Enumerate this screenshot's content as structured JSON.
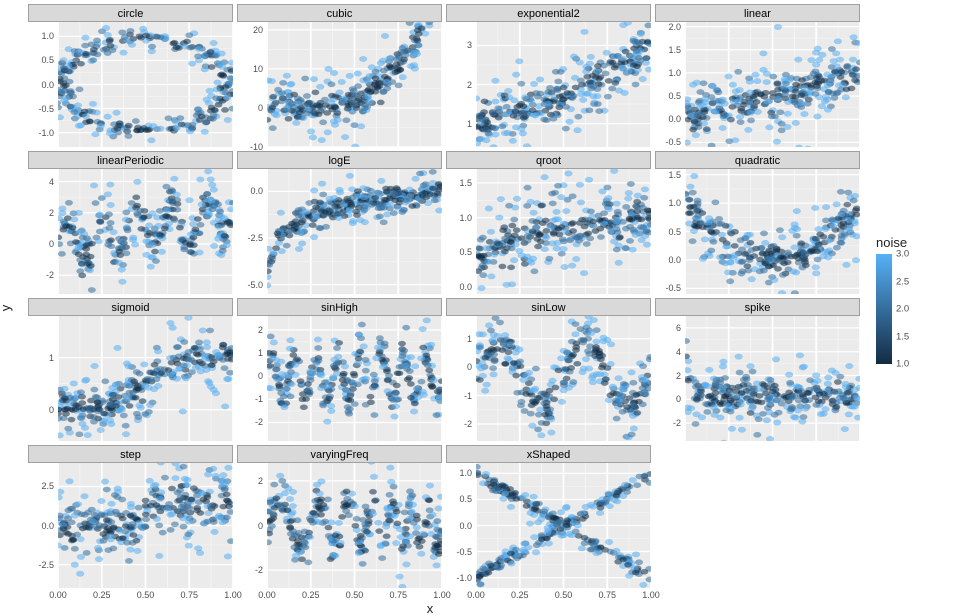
{
  "global": {
    "xlabel": "x",
    "ylabel": "y",
    "xlim": [
      0,
      1
    ],
    "xticks": [
      0.0,
      0.25,
      0.5,
      0.75,
      1.0
    ],
    "xtick_labels": [
      "0.00",
      "0.25",
      "0.50",
      "0.75",
      "1.00"
    ],
    "panel_bg": "#ebebeb",
    "grid_major": "#ffffff",
    "grid_minor": "#f5f5f5",
    "strip_bg": "#d9d9d9",
    "point_radius": 2.2,
    "point_alpha": 0.55,
    "point_stroke": "#5090b8",
    "n_points_per_panel": 300,
    "noise_levels": [
      1.0,
      2.0,
      3.0
    ]
  },
  "legend": {
    "title": "noise",
    "low_value": 1.0,
    "high_value": 3.0,
    "low_color": "#132b43",
    "high_color": "#56b1f7",
    "ticks": [
      1.0,
      1.5,
      2.0,
      2.5,
      3.0
    ]
  },
  "panels": [
    {
      "id": "circle",
      "title": "circle",
      "fn": "circle",
      "ylim": [
        -1.3,
        1.3
      ],
      "yticks": [
        -1.0,
        -0.5,
        0.0,
        0.5,
        1.0
      ],
      "ytick_labels": [
        "-1.0",
        "-0.5",
        "0.0",
        "0.5",
        "1.0"
      ],
      "noise_scale": 0.06
    },
    {
      "id": "cubic",
      "title": "cubic",
      "fn": "cubic",
      "ylim": [
        -10,
        22
      ],
      "yticks": [
        -10,
        0,
        10,
        20
      ],
      "ytick_labels": [
        "-10",
        "0",
        "10",
        "20"
      ],
      "noise_scale": 1.5
    },
    {
      "id": "exponential2",
      "title": "exponential2",
      "fn": "exponential2",
      "ylim": [
        0.4,
        3.6
      ],
      "yticks": [
        1,
        2,
        3
      ],
      "ytick_labels": [
        "1",
        "2",
        "3"
      ],
      "noise_scale": 0.18
    },
    {
      "id": "linear",
      "title": "linear",
      "fn": "linear",
      "ylim": [
        -0.6,
        2.1
      ],
      "yticks": [
        -0.5,
        0.0,
        0.5,
        1.0,
        1.5,
        2.0
      ],
      "ytick_labels": [
        "-0.5",
        "0.0",
        "0.5",
        "1.0",
        "1.5",
        "2.0"
      ],
      "noise_scale": 0.15
    },
    {
      "id": "linearPeriodic",
      "title": "linearPeriodic",
      "fn": "linearPeriodic",
      "ylim": [
        -3.2,
        4.8
      ],
      "yticks": [
        -2,
        0,
        2,
        4
      ],
      "ytick_labels": [
        "-2",
        "0",
        "2",
        "4"
      ],
      "noise_scale": 0.45
    },
    {
      "id": "logE",
      "title": "logE",
      "fn": "logE",
      "ylim": [
        -5.5,
        1.2
      ],
      "yticks": [
        -5.0,
        -2.5,
        0.0
      ],
      "ytick_labels": [
        "-5.0",
        "-2.5",
        "0.0"
      ],
      "noise_scale": 0.25
    },
    {
      "id": "qroot",
      "title": "qroot",
      "fn": "qroot",
      "ylim": [
        -0.1,
        1.7
      ],
      "yticks": [
        0.0,
        0.5,
        1.0,
        1.5
      ],
      "ytick_labels": [
        "0.0",
        "0.5",
        "1.0",
        "1.5"
      ],
      "noise_scale": 0.13
    },
    {
      "id": "quadratic",
      "title": "quadratic",
      "fn": "quadratic",
      "ylim": [
        -0.6,
        1.6
      ],
      "yticks": [
        -0.5,
        0.0,
        0.5,
        1.0,
        1.5
      ],
      "ytick_labels": [
        "-0.5",
        "0.0",
        "0.5",
        "1.0",
        "1.5"
      ],
      "noise_scale": 0.13
    },
    {
      "id": "sigmoid",
      "title": "sigmoid",
      "fn": "sigmoid",
      "ylim": [
        -0.6,
        1.8
      ],
      "yticks": [
        0,
        1
      ],
      "ytick_labels": [
        "0",
        "1"
      ],
      "noise_scale": 0.13
    },
    {
      "id": "sinHigh",
      "title": "sinHigh",
      "fn": "sinHigh",
      "ylim": [
        -2.8,
        2.6
      ],
      "yticks": [
        -2,
        -1,
        0,
        1,
        2
      ],
      "ytick_labels": [
        "-2",
        "-1",
        "0",
        "1",
        "2"
      ],
      "noise_scale": 0.25
    },
    {
      "id": "sinLow",
      "title": "sinLow",
      "fn": "sinLow",
      "ylim": [
        -2.6,
        1.8
      ],
      "yticks": [
        -2,
        -1,
        0,
        1
      ],
      "ytick_labels": [
        "-2",
        "-1",
        "0",
        "1"
      ],
      "noise_scale": 0.25
    },
    {
      "id": "spike",
      "title": "spike",
      "fn": "spike",
      "ylim": [
        -3.5,
        7
      ],
      "yticks": [
        -2,
        0,
        2,
        4,
        6
      ],
      "ytick_labels": [
        "-2",
        "0",
        "2",
        "4",
        "6"
      ],
      "noise_scale": 0.5
    },
    {
      "id": "step",
      "title": "step",
      "fn": "step",
      "ylim": [
        -4,
        4
      ],
      "yticks": [
        -2.5,
        0.0,
        2.5
      ],
      "ytick_labels": [
        "-2.5",
        "0.0",
        "2.5"
      ],
      "noise_scale": 0.5
    },
    {
      "id": "varyingFreq",
      "title": "varyingFreq",
      "fn": "varyingFreq",
      "ylim": [
        -2.8,
        2.8
      ],
      "yticks": [
        -2,
        0,
        2
      ],
      "ytick_labels": [
        "-2",
        "0",
        "2"
      ],
      "noise_scale": 0.3
    },
    {
      "id": "xShaped",
      "title": "xShaped",
      "fn": "xShaped",
      "ylim": [
        -1.2,
        1.2
      ],
      "yticks": [
        -1.0,
        -0.5,
        0.0,
        0.5,
        1.0
      ],
      "ytick_labels": [
        "-1.0",
        "-0.5",
        "0.0",
        "0.5",
        "1.0"
      ],
      "noise_scale": 0.04
    }
  ]
}
